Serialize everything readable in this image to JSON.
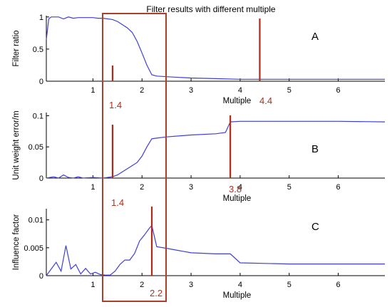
{
  "title": "Filter results with different multiple",
  "colors": {
    "line": "#3f3fd6",
    "marker": "#b22a1a",
    "box": "#a8402b",
    "axis": "#000000"
  },
  "chart_data": [
    {
      "type": "line",
      "panel_label": "A",
      "xlabel": "Multiple",
      "ylabel": "Filter ratio",
      "xlim": [
        0.05,
        6.95
      ],
      "ylim": [
        0,
        1.02
      ],
      "xticks": [
        1,
        2,
        3,
        4,
        5,
        6
      ],
      "yticks": [
        0,
        0.5,
        1
      ],
      "ytick_labels": [
        "0",
        "0.5",
        "1"
      ],
      "x": [
        0.05,
        0.1,
        0.15,
        0.2,
        0.3,
        0.4,
        0.5,
        0.6,
        0.7,
        0.8,
        0.9,
        1.0,
        1.1,
        1.2,
        1.3,
        1.4,
        1.5,
        1.6,
        1.7,
        1.8,
        1.9,
        2.0,
        2.1,
        2.2,
        2.3,
        2.5,
        3.0,
        3.5,
        4.0,
        5.0,
        6.0,
        6.95
      ],
      "y": [
        0.65,
        0.97,
        1.0,
        1.0,
        1.0,
        0.97,
        1.0,
        0.98,
        0.99,
        0.99,
        0.99,
        0.99,
        0.98,
        0.98,
        0.97,
        0.96,
        0.93,
        0.88,
        0.83,
        0.76,
        0.62,
        0.44,
        0.25,
        0.1,
        0.08,
        0.07,
        0.05,
        0.04,
        0.03,
        0.03,
        0.03,
        0.03
      ],
      "markers": [
        {
          "x": 1.4,
          "label": "1.4"
        },
        {
          "x": 4.4,
          "label": "4.4"
        }
      ]
    },
    {
      "type": "line",
      "panel_label": "B",
      "xlabel": "Multiple",
      "ylabel": "Unit weight error/m",
      "xlim": [
        0.05,
        6.95
      ],
      "ylim": [
        0,
        0.105
      ],
      "xticks": [
        1,
        2,
        3,
        4,
        5,
        6
      ],
      "yticks": [
        0,
        0.05,
        0.1
      ],
      "ytick_labels": [
        "0",
        "0.05",
        "0.1"
      ],
      "x": [
        0.05,
        0.2,
        0.3,
        0.4,
        0.5,
        0.6,
        0.7,
        0.8,
        1.0,
        1.2,
        1.4,
        1.5,
        1.6,
        1.7,
        1.8,
        1.9,
        2.0,
        2.1,
        2.2,
        2.3,
        2.5,
        3.0,
        3.5,
        3.7,
        3.8,
        4.0,
        5.0,
        6.0,
        6.95
      ],
      "y": [
        0.0,
        0.002,
        0.0,
        0.005,
        0.001,
        0.0,
        0.002,
        0.0,
        0.001,
        0.0,
        0.002,
        0.005,
        0.01,
        0.015,
        0.02,
        0.025,
        0.035,
        0.05,
        0.063,
        0.064,
        0.066,
        0.069,
        0.071,
        0.073,
        0.09,
        0.091,
        0.091,
        0.091,
        0.09
      ],
      "markers": [
        {
          "x": 1.4,
          "label": "1.4"
        },
        {
          "x": 3.8,
          "label": "3.8"
        }
      ]
    },
    {
      "type": "line",
      "panel_label": "C",
      "xlabel": "Multiple",
      "ylabel": "Influence factor",
      "xlim": [
        0.05,
        6.95
      ],
      "ylim": [
        0,
        0.012
      ],
      "xticks": [
        1,
        2,
        3,
        4,
        5,
        6
      ],
      "yticks": [
        0,
        0.005,
        0.01
      ],
      "ytick_labels": [
        "0",
        "0.005",
        "0.01"
      ],
      "x": [
        0.05,
        0.15,
        0.25,
        0.35,
        0.45,
        0.55,
        0.65,
        0.75,
        0.85,
        0.95,
        1.05,
        1.15,
        1.25,
        1.35,
        1.45,
        1.55,
        1.65,
        1.75,
        1.85,
        1.95,
        2.05,
        2.15,
        2.2,
        2.3,
        2.5,
        3.0,
        3.5,
        3.8,
        4.0,
        5.0,
        6.0,
        6.95
      ],
      "y": [
        0.0,
        0.0012,
        0.0024,
        0.0008,
        0.0054,
        0.0012,
        0.002,
        0.0003,
        0.0013,
        0.0003,
        0.0006,
        0.0002,
        0.0001,
        0.0001,
        0.0008,
        0.002,
        0.0028,
        0.0028,
        0.004,
        0.0062,
        0.0073,
        0.0085,
        0.009,
        0.0052,
        0.0049,
        0.0041,
        0.0039,
        0.0039,
        0.0023,
        0.0021,
        0.0021,
        0.0021
      ],
      "markers": [
        {
          "x": 2.2,
          "label": "2.2"
        }
      ]
    }
  ]
}
